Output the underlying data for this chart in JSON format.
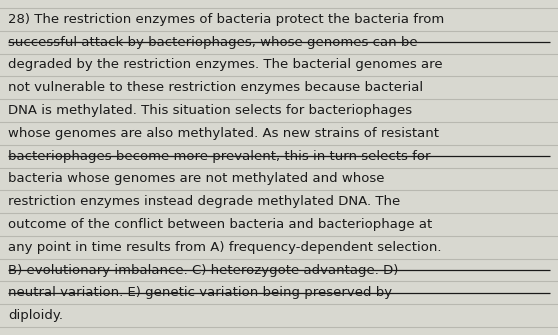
{
  "background_color": "#d8d8d0",
  "line_color": "#b8b8b0",
  "text_color": "#1a1a1a",
  "font_size": 9.5,
  "lines": [
    "28) The restriction enzymes of bacteria protect the bacteria from",
    "successful attack by bacteriophages, whose genomes can be",
    "degraded by the restriction enzymes. The bacterial genomes are",
    "not vulnerable to these restriction enzymes because bacterial",
    "DNA is methylated. This situation selects for bacteriophages",
    "whose genomes are also methylated. As new strains of resistant",
    "bacteriophages become more prevalent, this in turn selects for",
    "bacteria whose genomes are not methylated and whose",
    "restriction enzymes instead degrade methylated DNA. The",
    "outcome of the conflict between bacteria and bacteriophage at",
    "any point in time results from A) frequency-dependent selection.",
    "B) evolutionary imbalance. C) heterozygote advantage. D)",
    "neutral variation. E) genetic variation being preserved by",
    "diploidy."
  ],
  "strikethrough_lines": [
    1,
    6,
    11,
    12
  ],
  "fig_width": 5.58,
  "fig_height": 3.35,
  "dpi": 100
}
